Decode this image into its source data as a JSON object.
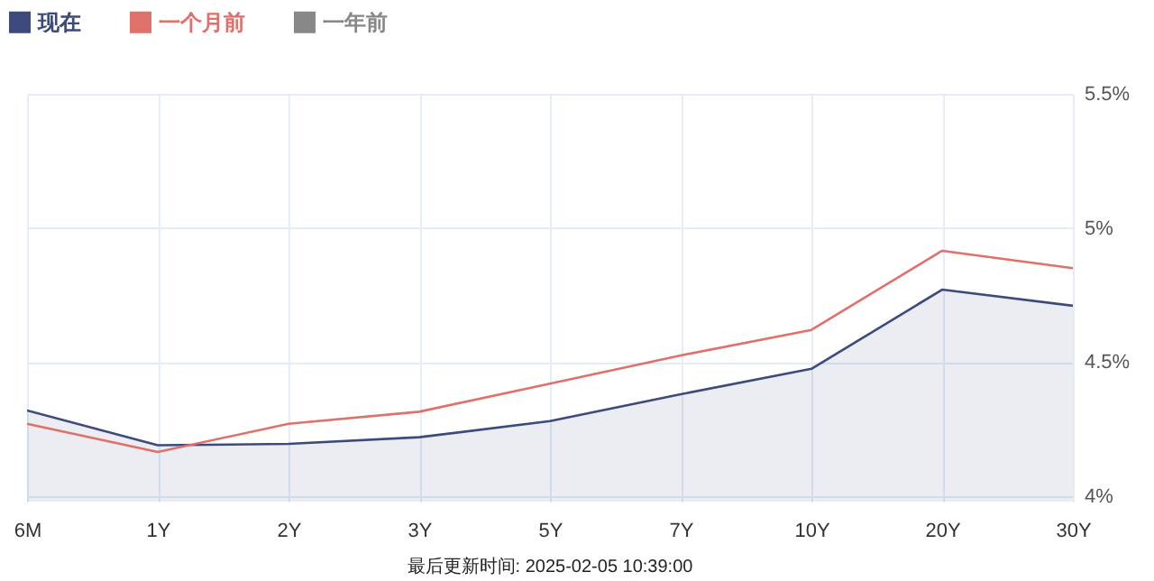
{
  "chart_data": {
    "type": "line",
    "categories": [
      "6M",
      "1Y",
      "2Y",
      "3Y",
      "5Y",
      "7Y",
      "10Y",
      "20Y",
      "30Y"
    ],
    "series": [
      {
        "name": "现在",
        "color": "#3d4a7c",
        "type": "area",
        "values": [
          4.32,
          4.19,
          4.195,
          4.22,
          4.28,
          4.38,
          4.475,
          4.77,
          4.71
        ]
      },
      {
        "name": "一个月前",
        "color": "#e0706a",
        "values": [
          4.27,
          4.165,
          4.27,
          4.315,
          4.42,
          4.525,
          4.62,
          4.915,
          4.85
        ]
      },
      {
        "name": "一年前",
        "color": "#888888",
        "values": [
          null,
          null,
          null,
          null,
          null,
          null,
          null,
          null,
          null
        ]
      }
    ],
    "ylim": [
      3.98,
      5.5
    ],
    "yticks": [
      {
        "value": 4,
        "label": "4%"
      },
      {
        "value": 4.5,
        "label": "4.5%"
      },
      {
        "value": 5,
        "label": "5%"
      },
      {
        "value": 5.5,
        "label": "5.5%"
      }
    ],
    "grid": true,
    "legend": "top left",
    "marker": "none",
    "line_style": "solid",
    "annotations": [
      "最后更新时间: 2025-02-05 10:39:00"
    ]
  }
}
